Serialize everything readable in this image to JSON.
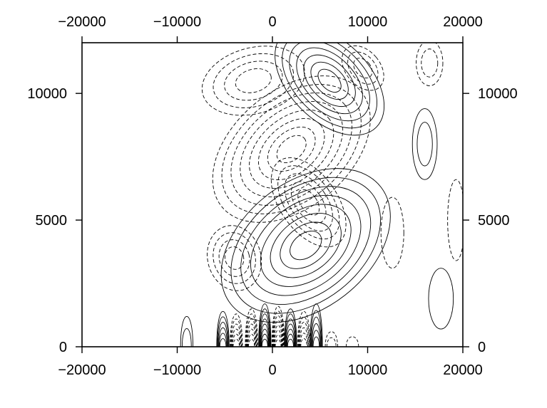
{
  "chart_data": {
    "type": "contour",
    "title": "",
    "xlabel": "",
    "ylabel": "",
    "xlim": [
      -20000,
      20000
    ],
    "ylim": [
      0,
      12000
    ],
    "x_ticks": [
      -20000,
      -10000,
      0,
      10000,
      20000
    ],
    "y_ticks": [
      0,
      5000,
      10000
    ],
    "x_tick_labels": [
      "−20000",
      "−10000",
      "0",
      "10000",
      "20000"
    ],
    "y_tick_labels": [
      "0",
      "5000",
      "10000"
    ],
    "grid": false,
    "legend": "none",
    "line_color": "#000000",
    "negative_contour_style": "dashed",
    "positive_contour_style": "solid",
    "lobes": [
      {
        "sign": "positive",
        "x": 6000,
        "y": 10500,
        "rx": 4200,
        "ry": 2600,
        "rings": 7,
        "rotate": 45
      },
      {
        "sign": "positive",
        "x": 3500,
        "y": 4000,
        "rx": 10000,
        "ry": 2500,
        "rings": 8,
        "rotate": 38
      },
      {
        "sign": "negative",
        "x": 2000,
        "y": 7800,
        "rx": 9500,
        "ry": 2300,
        "rings": 8,
        "rotate": 40
      },
      {
        "sign": "negative",
        "x": 3800,
        "y": 5700,
        "rx": 3000,
        "ry": 2000,
        "rings": 5,
        "rotate": 35
      },
      {
        "sign": "negative",
        "x": -4000,
        "y": 3500,
        "rx": 2800,
        "ry": 1300,
        "rings": 4,
        "rotate": 15
      },
      {
        "sign": "negative",
        "x": -2000,
        "y": 10500,
        "rx": 5500,
        "ry": 1300,
        "rings": 4,
        "rotate": 15
      },
      {
        "sign": "negative",
        "x": 9500,
        "y": 11000,
        "rx": 1800,
        "ry": 1000,
        "rings": 3,
        "rotate": 40
      },
      {
        "sign": "negative",
        "x": 16500,
        "y": 11200,
        "rx": 1400,
        "ry": 900,
        "rings": 2,
        "rotate": 0
      },
      {
        "sign": "positive",
        "x": 16000,
        "y": 8000,
        "rx": 1300,
        "ry": 1400,
        "rings": 2,
        "rotate": 0
      },
      {
        "sign": "negative",
        "x": 19300,
        "y": 5000,
        "rx": 900,
        "ry": 1600,
        "rings": 1,
        "rotate": 0
      },
      {
        "sign": "negative",
        "x": 12600,
        "y": 4500,
        "rx": 1200,
        "ry": 1400,
        "rings": 1,
        "rotate": 0
      },
      {
        "sign": "positive",
        "x": 17700,
        "y": 1900,
        "rx": 1300,
        "ry": 1200,
        "rings": 1,
        "rotate": 0
      }
    ],
    "surface_cells": [
      {
        "sign": "positive",
        "x": -5200,
        "amp": 1400,
        "rings": 6
      },
      {
        "sign": "negative",
        "x": -3800,
        "amp": 1300,
        "rings": 6
      },
      {
        "sign": "negative",
        "x": -2200,
        "amp": 1500,
        "rings": 7
      },
      {
        "sign": "positive",
        "x": -800,
        "amp": 1700,
        "rings": 8
      },
      {
        "sign": "negative",
        "x": 600,
        "amp": 1600,
        "rings": 8
      },
      {
        "sign": "positive",
        "x": 1900,
        "amp": 1500,
        "rings": 7
      },
      {
        "sign": "negative",
        "x": 3300,
        "amp": 1400,
        "rings": 6
      },
      {
        "sign": "positive",
        "x": 4600,
        "amp": 1700,
        "rings": 6
      },
      {
        "sign": "negative",
        "x": 6200,
        "amp": 600,
        "rings": 2
      },
      {
        "sign": "negative",
        "x": 8400,
        "amp": 400,
        "rings": 1
      },
      {
        "sign": "positive",
        "x": -9000,
        "amp": 1200,
        "rings": 2
      }
    ]
  }
}
